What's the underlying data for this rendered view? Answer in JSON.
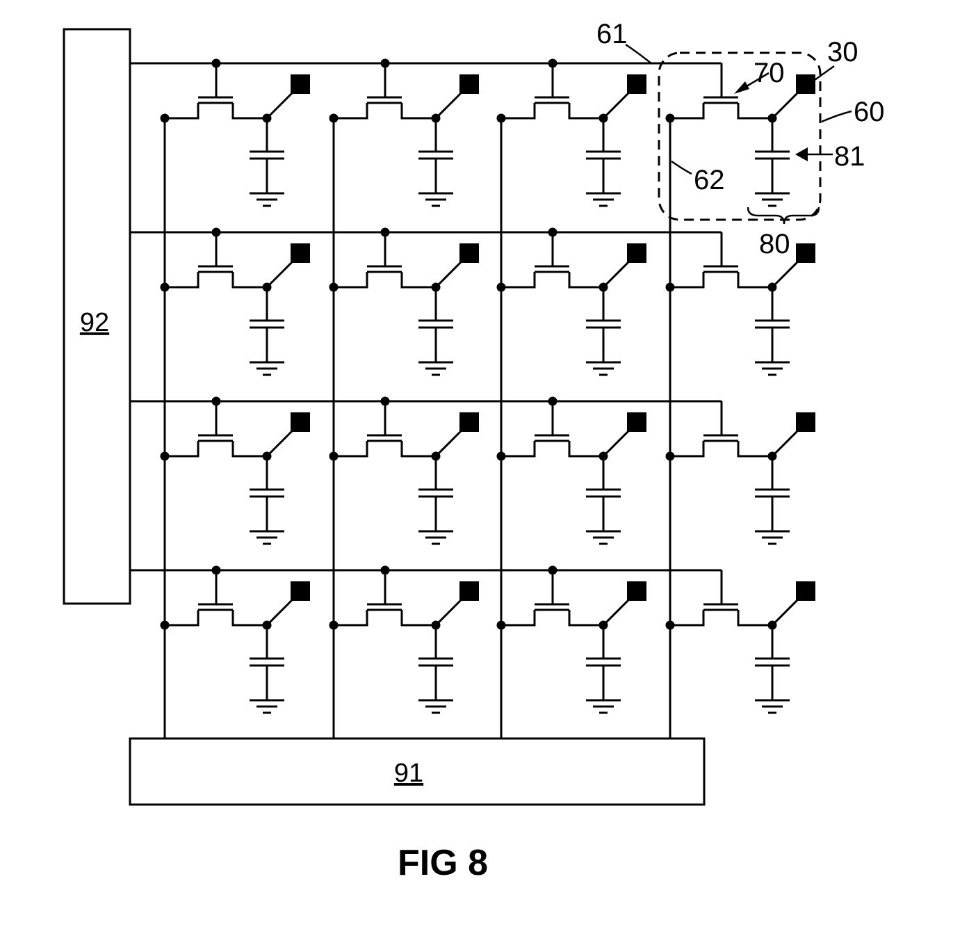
{
  "figure": {
    "caption": "FIG 8",
    "blocks": {
      "left_driver": "92",
      "bottom_driver": "91"
    },
    "reference_numerals": {
      "select_line": "61",
      "transistor": "70",
      "electrode": "30",
      "pixel_cell": "60",
      "capacitor": "81",
      "data_line": "62",
      "storage_element": "80"
    },
    "array": {
      "rows": 4,
      "columns": 4
    }
  }
}
